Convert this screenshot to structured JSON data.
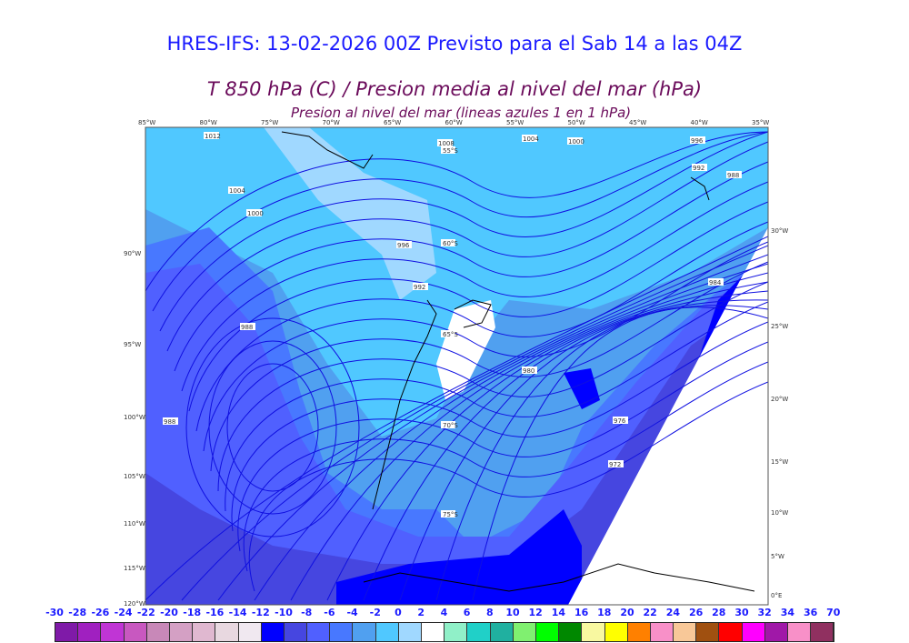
{
  "title": "HRES-IFS: 13-02-2026 00Z Previsto para el Sab 14 a las 04Z",
  "subtitle": "T 850 hPa (C) / Presion media al nivel del mar (hPa)",
  "subtitle2": "Presion al nivel del mar (lineas azules 1 en 1 hPa)",
  "top_lon_labels": [
    "85°W",
    "80°W",
    "75°W",
    "70°W",
    "65°W",
    "60°W",
    "55°W",
    "50°W",
    "45°W",
    "40°W",
    "35°W"
  ],
  "left_labels": [
    "90°W",
    "95°W",
    "100°W",
    "105°W",
    "110°W",
    "115°W",
    "120°W"
  ],
  "right_labels": [
    "30°W",
    "25°W",
    "20°W",
    "15°W",
    "10°W",
    "5°W",
    "0°E"
  ],
  "lat_labels": [
    "55°S",
    "60°S",
    "65°S",
    "70°S",
    "75°S"
  ],
  "isobar_labels": [
    "1012",
    "1004",
    "1000",
    "1008",
    "1004",
    "1000",
    "996",
    "992",
    "988",
    "996",
    "992",
    "988",
    "984",
    "988",
    "980",
    "976",
    "972"
  ],
  "colorbar": {
    "labels": [
      "-30",
      "-28",
      "-26",
      "-24",
      "-22",
      "-20",
      "-18",
      "-16",
      "-14",
      "-12",
      "-10",
      "-8",
      "-6",
      "-4",
      "-2",
      "0",
      "2",
      "4",
      "6",
      "8",
      "10",
      "12",
      "14",
      "16",
      "18",
      "20",
      "22",
      "24",
      "26",
      "28",
      "30",
      "32",
      "34",
      "36",
      "70"
    ],
    "colors": [
      "#7f1aa8",
      "#a020c0",
      "#c035d5",
      "#c858c0",
      "#c888b8",
      "#d4a0c4",
      "#e0b8d0",
      "#e8d8e0",
      "#f0e8f0",
      "#0000ff",
      "#4646e0",
      "#5060ff",
      "#4878ff",
      "#50a0f0",
      "#50c8ff",
      "#a0d8ff",
      "#ffffff",
      "#90f0c8",
      "#20d0c8",
      "#20b0a0",
      "#80f070",
      "#00ff00",
      "#008800",
      "#f8f8a0",
      "#ffff00",
      "#ff8000",
      "#f890c8",
      "#f8c898",
      "#a05010",
      "#ff0000",
      "#ff00ff",
      "#a018a8",
      "#f890c8",
      "#903060",
      "#000000"
    ]
  }
}
